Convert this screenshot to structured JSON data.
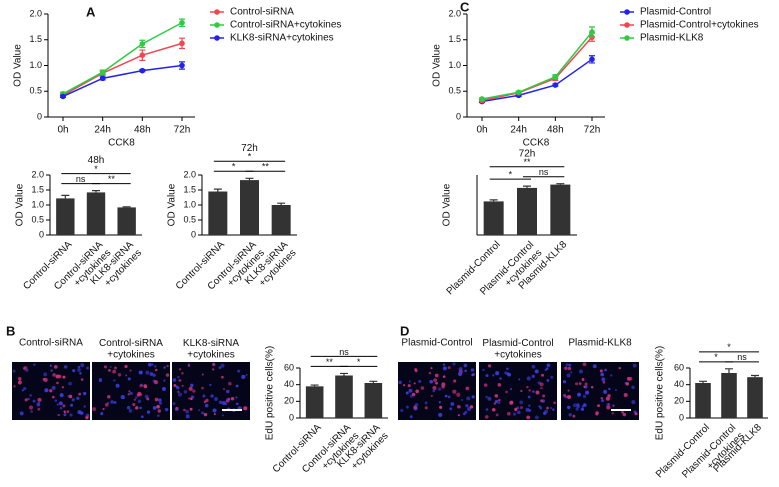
{
  "panel_labels": [
    "A",
    "B",
    "C",
    "D"
  ],
  "images": {
    "B": [
      "Control-siRNA",
      "Control-siRNA\n+cytokines",
      "KLK8-siRNA\n+cytokines"
    ],
    "D": [
      "Plasmid-Control",
      "Plasmid-Control\n+cytokines",
      "Plasmid-KLK8"
    ]
  },
  "chart_data": [
    {
      "type": "line",
      "xlabel": "CCK8",
      "ylabel": "OD Value",
      "categories": [
        "0h",
        "24h",
        "48h",
        "72h"
      ],
      "ylim": [
        0,
        2
      ],
      "yticks": [
        0,
        0.5,
        {
          "value": 1,
          "label": "1.0"
        },
        1.5,
        {
          "value": 2,
          "label": "2.0"
        }
      ],
      "series": [
        {
          "name": "Control-siRNA",
          "color": "#f0474f",
          "values": [
            0.42,
            0.85,
            1.2,
            1.43
          ],
          "errors": [
            0.03,
            0.04,
            0.1,
            0.1
          ]
        },
        {
          "name": "Control-siRNA+cytokines",
          "color": "#2ecc40",
          "values": [
            0.45,
            0.87,
            1.42,
            1.83
          ],
          "errors": [
            0.03,
            0.04,
            0.07,
            0.07
          ]
        },
        {
          "name": "KLK8-siRNA+cytokines",
          "color": "#2222ee",
          "values": [
            0.4,
            0.75,
            0.9,
            1.0
          ],
          "errors": [
            0.02,
            0.03,
            0.02,
            0.07
          ]
        }
      ]
    },
    {
      "type": "bar",
      "title": "48h",
      "ylabel": "OD Value",
      "categories": [
        "Control-siRNA",
        "Control-siRNA\n+cytokines",
        "KLK8-siRNA\n+cytokines"
      ],
      "values": [
        1.22,
        1.42,
        0.92
      ],
      "errors": [
        0.1,
        0.06,
        0.02
      ],
      "color": "#333333",
      "ylim": [
        0,
        2
      ],
      "yticks": [
        0,
        0.5,
        {
          "value": 1,
          "label": "1.0"
        },
        1.5,
        {
          "value": 2,
          "label": "2.0"
        }
      ],
      "annotations": [
        "ns",
        "**",
        "*"
      ]
    },
    {
      "type": "bar",
      "title": "72h",
      "ylabel": "OD Value",
      "categories": [
        "Control-siRNA",
        "Control-siRNA\n+cytokines",
        "KLK8-siRNA\n+cytokines"
      ],
      "values": [
        1.45,
        1.83,
        1.0
      ],
      "errors": [
        0.08,
        0.06,
        0.06
      ],
      "color": "#333333",
      "ylim": [
        0,
        2
      ],
      "yticks": [
        0,
        0.5,
        {
          "value": 1,
          "label": "1.0"
        },
        1.5,
        {
          "value": 2,
          "label": "2.0"
        }
      ],
      "annotations": [
        "*",
        "**",
        "*"
      ]
    },
    {
      "type": "line",
      "xlabel": "CCK8",
      "ylabel": "OD Value",
      "categories": [
        "0h",
        "24h",
        "48h",
        "72h"
      ],
      "ylim": [
        0,
        2
      ],
      "yticks": [
        0,
        0.5,
        {
          "value": 1,
          "label": "1.0"
        },
        1.5,
        {
          "value": 2,
          "label": "2.0"
        }
      ],
      "series": [
        {
          "name": "Plasmid-Control",
          "color": "#2222ee",
          "values": [
            0.3,
            0.42,
            0.62,
            1.12
          ],
          "errors": [
            0.02,
            0.02,
            0.02,
            0.07
          ]
        },
        {
          "name": "Plasmid-Control+cytokines",
          "color": "#f0474f",
          "values": [
            0.32,
            0.47,
            0.75,
            1.55
          ],
          "errors": [
            0.02,
            0.02,
            0.04,
            0.08
          ]
        },
        {
          "name": "Plasmid-KLK8",
          "color": "#2ecc40",
          "values": [
            0.35,
            0.48,
            0.78,
            1.65
          ],
          "errors": [
            0.02,
            0.02,
            0.04,
            0.1
          ]
        }
      ]
    },
    {
      "type": "bar",
      "title": "72h",
      "ylabel": "OD Value",
      "categories": [
        "Plasmid-Control",
        "Plasmid-Control\n+cytokines",
        "Plasmid-KLK8"
      ],
      "values": [
        1.12,
        1.57,
        1.68
      ],
      "errors": [
        0.05,
        0.06,
        0.03
      ],
      "color": "#333333",
      "ylim": [
        0,
        2
      ],
      "annotations": [
        "*",
        "ns",
        "**"
      ]
    },
    {
      "type": "bar",
      "ylabel": "EdU positive cells(%)",
      "categories": [
        "Control-siRNA",
        "Control-siRNA\n+cytokines",
        "KLK8-siRNA\n+cytokines"
      ],
      "values": [
        38,
        51,
        42
      ],
      "errors": [
        1.5,
        2.5,
        2
      ],
      "color": "#333333",
      "ylim": [
        0,
        60
      ],
      "yticks": [
        0,
        20,
        40,
        60
      ],
      "annotations": [
        "**",
        "*",
        "ns"
      ]
    },
    {
      "type": "bar",
      "ylabel": "EdU positive cells(%)",
      "categories": [
        "Plasmid-Control",
        "Plasmid-Control\n+cytokines",
        "Plasmid-KLK8"
      ],
      "values": [
        42,
        54,
        49
      ],
      "errors": [
        2,
        5,
        2
      ],
      "color": "#333333",
      "ylim": [
        0,
        60
      ],
      "yticks": [
        0,
        20,
        40,
        60
      ],
      "annotations": [
        "*",
        "ns",
        "*"
      ]
    }
  ]
}
